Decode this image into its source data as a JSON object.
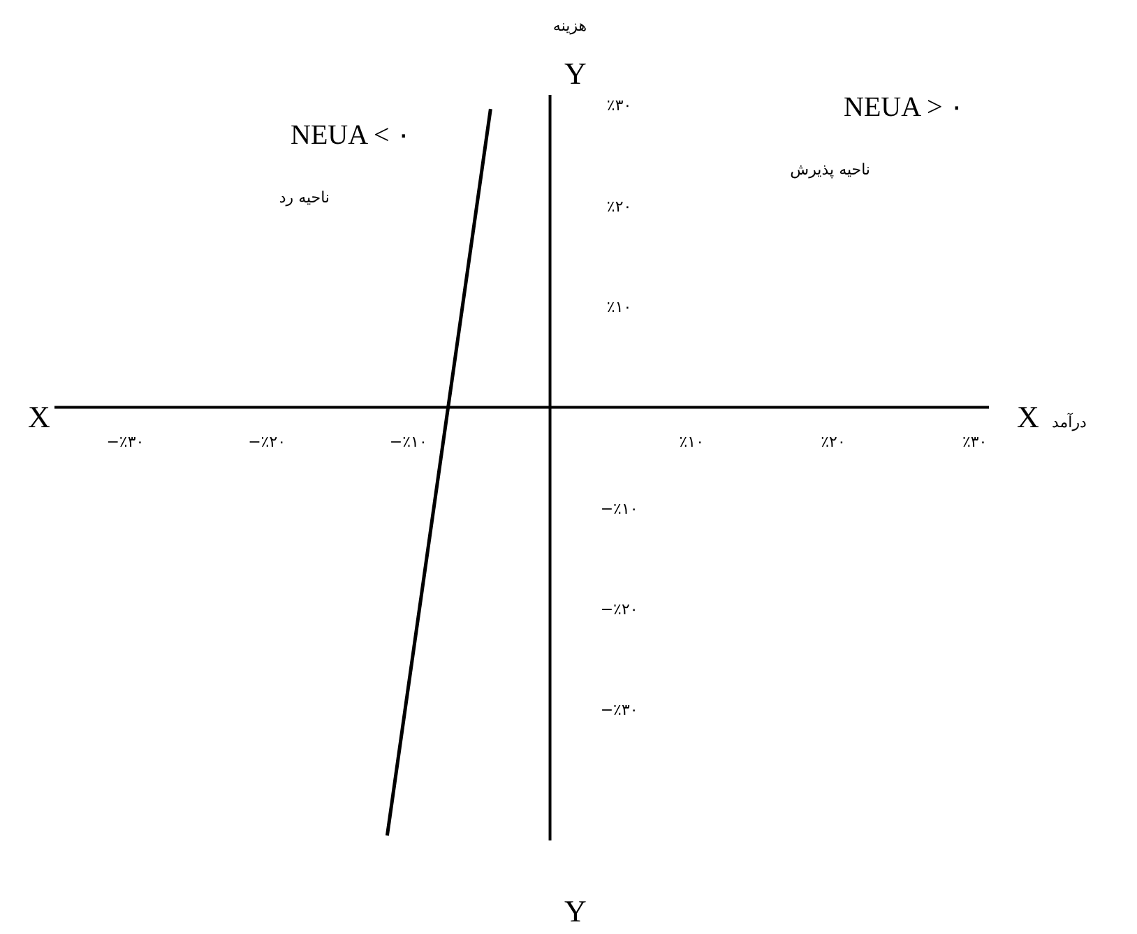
{
  "chart_data": {
    "type": "line",
    "xlabel": "درآمد",
    "ylabel": "هزینه",
    "annotations": [
      "NEUA < ۰",
      "ناحیه رد",
      "NEUA > ۰",
      "ناحیه پذیرش",
      "X",
      "X",
      "Y",
      "Y"
    ],
    "x": [
      -4.2,
      -11.5
    ],
    "series": [
      {
        "color": "#000000",
        "values": [
          29.6,
          -42.5
        ]
      }
    ],
    "xlim": [
      -35,
      31
    ],
    "ylim": [
      -43,
      31
    ],
    "xticks": [
      {
        "value": -30,
        "label": "−٪۳۰"
      },
      {
        "value": -20,
        "label": "−٪۲۰"
      },
      {
        "value": -10,
        "label": "−٪۱۰"
      },
      {
        "value": 10,
        "label": "٪۱۰"
      },
      {
        "value": 20,
        "label": "٪۲۰"
      },
      {
        "value": 30,
        "label": "٪۳۰"
      }
    ],
    "yticks": [
      {
        "value": 30,
        "label": "٪۳۰"
      },
      {
        "value": 20,
        "label": "٪۲۰"
      },
      {
        "value": 10,
        "label": "٪۱۰"
      },
      {
        "value": -10,
        "label": "−٪۱۰"
      },
      {
        "value": -20,
        "label": "−٪۲۰"
      },
      {
        "value": -30,
        "label": "−٪۳۰"
      }
    ],
    "grid": false,
    "legend": false,
    "marker": "none",
    "line_style": "solid"
  }
}
